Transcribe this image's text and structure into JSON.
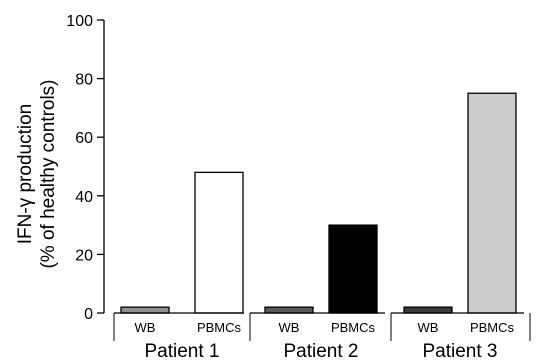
{
  "chart_data": {
    "type": "bar",
    "ylabel_line1": "IFN-γ production",
    "ylabel_line2": "(% of healthy controls)",
    "xlabel": "",
    "ylim": [
      0,
      100
    ],
    "yticks": [
      0,
      20,
      40,
      60,
      80,
      100
    ],
    "grid": false,
    "groups": [
      {
        "name": "Patient 1",
        "bars": [
          {
            "category": "WB",
            "value": 2,
            "color": "#909090"
          },
          {
            "category": "PBMCs",
            "value": 48,
            "color": "#ffffff"
          }
        ]
      },
      {
        "name": "Patient 2",
        "bars": [
          {
            "category": "WB",
            "value": 2,
            "color": "#5a5a5a"
          },
          {
            "category": "PBMCs",
            "value": 30,
            "color": "#000000"
          }
        ]
      },
      {
        "name": "Patient 3",
        "bars": [
          {
            "category": "WB",
            "value": 2,
            "color": "#3a3a3a"
          },
          {
            "category": "PBMCs",
            "value": 75,
            "color": "#cccccc"
          }
        ]
      }
    ]
  }
}
